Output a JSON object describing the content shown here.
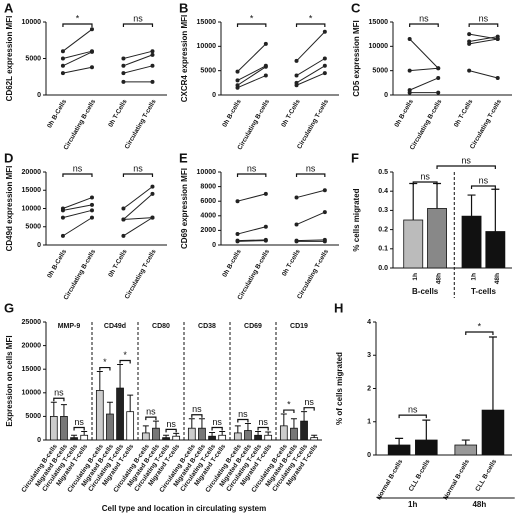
{
  "chart_data": [
    {
      "type": "line",
      "panel": "A",
      "ylabel": "CD62L expression MFI",
      "categories": [
        "0h B-Cells",
        "Circulating B-cells",
        "0h T-Cells",
        "Circulating T-cells"
      ],
      "ylim": [
        0,
        10000
      ],
      "yticks": [
        0,
        5000,
        10000
      ],
      "color": "#222222",
      "series": [
        {
          "values": [
            6000,
            9000,
            null,
            null
          ]
        },
        {
          "values": [
            5000,
            6000,
            null,
            null
          ]
        },
        {
          "values": [
            4000,
            5900,
            null,
            null
          ]
        },
        {
          "values": [
            3000,
            3800,
            null,
            null
          ]
        },
        {
          "values": [
            null,
            null,
            5000,
            6000
          ]
        },
        {
          "values": [
            null,
            null,
            4000,
            5500
          ]
        },
        {
          "values": [
            null,
            null,
            3000,
            4000
          ]
        },
        {
          "values": [
            null,
            null,
            1800,
            1800
          ]
        }
      ],
      "annotations": [
        "*",
        "ns"
      ]
    },
    {
      "type": "line",
      "panel": "B",
      "ylabel": "CXCR4 expression MFI",
      "categories": [
        "0h B-cells",
        "Circulating B-cells",
        "0h T-Cells",
        "Circulating T-cells"
      ],
      "ylim": [
        0,
        15000
      ],
      "yticks": [
        0,
        5000,
        10000,
        15000
      ],
      "color": "#222222",
      "series": [
        {
          "values": [
            4800,
            10500,
            null,
            null
          ]
        },
        {
          "values": [
            3000,
            6000,
            null,
            null
          ]
        },
        {
          "values": [
            2000,
            5800,
            null,
            null
          ]
        },
        {
          "values": [
            1500,
            4000,
            null,
            null
          ]
        },
        {
          "values": [
            null,
            null,
            7000,
            13000
          ]
        },
        {
          "values": [
            null,
            null,
            4000,
            7500
          ]
        },
        {
          "values": [
            null,
            null,
            2500,
            6000
          ]
        },
        {
          "values": [
            null,
            null,
            2000,
            4500
          ]
        }
      ],
      "annotations": [
        "*",
        "*"
      ]
    },
    {
      "type": "line",
      "panel": "C",
      "ylabel": "CD5 expression MFI",
      "categories": [
        "0h B-cells",
        "Circulating B-cells",
        "0h T-Cells",
        "Circulating T-cells"
      ],
      "ylim": [
        0,
        15000
      ],
      "yticks": [
        0,
        5000,
        10000,
        15000
      ],
      "color": "#222222",
      "series": [
        {
          "values": [
            11500,
            5500,
            null,
            null
          ]
        },
        {
          "values": [
            5000,
            5500,
            null,
            null
          ]
        },
        {
          "values": [
            1000,
            3500,
            null,
            null
          ]
        },
        {
          "values": [
            500,
            500,
            null,
            null
          ]
        },
        {
          "values": [
            null,
            null,
            12500,
            11500
          ]
        },
        {
          "values": [
            null,
            null,
            11000,
            12000
          ]
        },
        {
          "values": [
            null,
            null,
            10500,
            11500
          ]
        },
        {
          "values": [
            null,
            null,
            5000,
            3500
          ]
        }
      ],
      "annotations": [
        "ns",
        "ns"
      ]
    },
    {
      "type": "line",
      "panel": "D",
      "ylabel": "CD49d expression MFI",
      "categories": [
        "0h B-Cells",
        "Circulating B-cells",
        "0h T-Cells",
        "Circulating T-cells"
      ],
      "ylim": [
        0,
        20000
      ],
      "yticks": [
        0,
        5000,
        10000,
        15000,
        20000
      ],
      "color": "#222222",
      "series": [
        {
          "values": [
            10000,
            13000,
            null,
            null
          ]
        },
        {
          "values": [
            9500,
            11000,
            null,
            null
          ]
        },
        {
          "values": [
            7500,
            9500,
            null,
            null
          ]
        },
        {
          "values": [
            2500,
            7500,
            null,
            null
          ]
        },
        {
          "values": [
            null,
            null,
            10000,
            16000
          ]
        },
        {
          "values": [
            null,
            null,
            7000,
            14000
          ]
        },
        {
          "values": [
            null,
            null,
            7000,
            7500
          ]
        },
        {
          "values": [
            null,
            null,
            2500,
            7500
          ]
        }
      ],
      "annotations": [
        "ns",
        "ns"
      ]
    },
    {
      "type": "line",
      "panel": "E",
      "ylabel": "CD69 expression MFI",
      "categories": [
        "0h B-cells",
        "Circulating B-cells",
        "0h T-cells",
        "Circulating T-cells"
      ],
      "ylim": [
        0,
        10000
      ],
      "yticks": [
        0,
        2000,
        4000,
        6000,
        8000,
        10000
      ],
      "color": "#222222",
      "series": [
        {
          "values": [
            6000,
            7000,
            null,
            null
          ]
        },
        {
          "values": [
            1500,
            2500,
            null,
            null
          ]
        },
        {
          "values": [
            600,
            700,
            null,
            null
          ]
        },
        {
          "values": [
            500,
            600,
            null,
            null
          ]
        },
        {
          "values": [
            null,
            null,
            6500,
            7500
          ]
        },
        {
          "values": [
            null,
            null,
            2800,
            4500
          ]
        },
        {
          "values": [
            null,
            null,
            600,
            700
          ]
        },
        {
          "values": [
            null,
            null,
            500,
            500
          ]
        }
      ],
      "annotations": [
        "ns",
        "ns"
      ]
    },
    {
      "type": "bar",
      "panel": "F",
      "ylabel": "% cells migrated",
      "categories": [
        "1h",
        "48h",
        "1h",
        "48h"
      ],
      "groups": [
        "B-cells",
        "T-cells"
      ],
      "values": [
        0.25,
        0.31,
        0.27,
        0.19
      ],
      "errors": [
        0.19,
        0.13,
        0.11,
        0.22
      ],
      "colors": [
        "#bbbbbb",
        "#888888",
        "#111111",
        "#111111"
      ],
      "ylim": [
        0,
        0.5
      ],
      "yticks": [
        {
          "value": 0,
          "label": "0.0"
        },
        0.1,
        0.2,
        0.3,
        0.4,
        0.5
      ],
      "annotations": [
        "ns",
        "ns",
        "ns"
      ]
    },
    {
      "type": "grouped-bar",
      "panel": "G",
      "ylabel": "Expression on cells MFI",
      "xlabel": "Cell type and location in circulating system",
      "groups": [
        "MMP-9",
        "CD49d",
        "CD80",
        "CD38",
        "CD69",
        "CD19"
      ],
      "series": [
        {
          "name": "Circulating B-cells",
          "color": "#cccccc",
          "values": [
            5000,
            10500,
            1500,
            2500,
            1500,
            3000
          ],
          "errors": [
            3000,
            4000,
            1500,
            2000,
            1500,
            2500
          ]
        },
        {
          "name": "Migrated B-cells",
          "color": "#777777",
          "values": [
            5000,
            5500,
            2500,
            2500,
            2000,
            2500
          ],
          "errors": [
            2500,
            2500,
            1500,
            2000,
            1500,
            2000
          ]
        },
        {
          "name": "Circulating T-cells",
          "color": "#222222",
          "values": [
            500,
            11000,
            500,
            800,
            1000,
            4000
          ],
          "errors": [
            500,
            5000,
            500,
            800,
            800,
            2000
          ]
        },
        {
          "name": "Migrated T-cells",
          "color": "#ffffff",
          "values": [
            1000,
            6000,
            800,
            1000,
            1000,
            500
          ],
          "errors": [
            800,
            3500,
            600,
            800,
            700,
            500
          ]
        }
      ],
      "ylim": [
        0,
        25000
      ],
      "yticks": [
        0,
        5000,
        10000,
        15000,
        20000,
        25000
      ],
      "annotations": [
        [
          "ns",
          "ns"
        ],
        [
          "*",
          "*"
        ],
        [
          "ns",
          "ns"
        ],
        [
          "ns",
          "ns"
        ],
        [
          "ns",
          "ns"
        ],
        [
          "*",
          "ns"
        ]
      ]
    },
    {
      "type": "bar",
      "panel": "H",
      "ylabel": "% of cells migrated",
      "categories": [
        "Normal B-cells",
        "CLL B-cells",
        "Normal B-cells",
        "CLL B-cells"
      ],
      "groups": [
        "1h",
        "48h"
      ],
      "values": [
        0.3,
        0.45,
        0.3,
        1.35
      ],
      "errors": [
        0.2,
        0.6,
        0.15,
        2.2
      ],
      "colors": [
        "#111111",
        "#111111",
        "#999999",
        "#111111"
      ],
      "ylim": [
        0,
        4
      ],
      "yticks": [
        0,
        1,
        2,
        3,
        4
      ],
      "annotations": [
        "ns",
        "*"
      ]
    }
  ]
}
